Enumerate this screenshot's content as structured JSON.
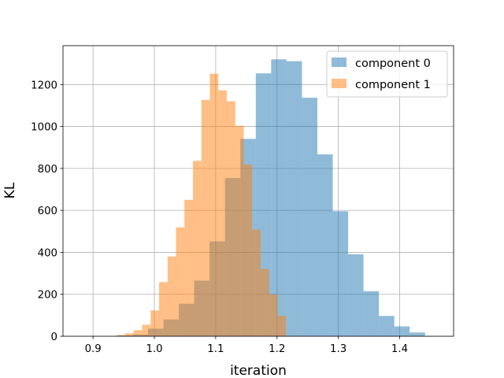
{
  "chart_data": {
    "type": "bar",
    "subtype": "histogram",
    "xlabel": "iteration",
    "ylabel": "KL",
    "xlim": [
      0.851,
      1.488
    ],
    "ylim": [
      0,
      1385
    ],
    "xticks": [
      0.9,
      1.0,
      1.1,
      1.2,
      1.3,
      1.4
    ],
    "xtick_labels": [
      "0.9",
      "1.0",
      "1.1",
      "1.2",
      "1.3",
      "1.4"
    ],
    "yticks": [
      0,
      200,
      400,
      600,
      800,
      1000,
      1200
    ],
    "ytick_labels": [
      "0",
      "200",
      "400",
      "600",
      "800",
      "1000",
      "1200"
    ],
    "grid": true,
    "legend_position": "top-right",
    "series": [
      {
        "name": "component 0",
        "color": "#1f77b4",
        "alpha": 0.5,
        "bin_edges": [
          0.9395,
          0.9646,
          0.9897,
          1.0148,
          1.0399,
          1.065,
          1.0901,
          1.1152,
          1.1403,
          1.1654,
          1.1905,
          1.2156,
          1.2407,
          1.2658,
          1.2909,
          1.316,
          1.3411,
          1.3662,
          1.3913,
          1.4164,
          1.4415
        ],
        "values": [
          4,
          8,
          36,
          80,
          155,
          265,
          452,
          754,
          941,
          1253,
          1320,
          1311,
          1137,
          867,
          596,
          391,
          215,
          97,
          47,
          18
        ],
        "edge_values": [
          0,
          3
        ]
      },
      {
        "name": "component 1",
        "color": "#ff7f0e",
        "alpha": 0.5,
        "bin_edges": [
          0.9387,
          0.9525,
          0.9663,
          0.9801,
          0.9939,
          1.0077,
          1.0215,
          1.0353,
          1.0491,
          1.0629,
          1.0767,
          1.0905,
          1.1043,
          1.1181,
          1.1319,
          1.1457,
          1.1595,
          1.1733,
          1.1871,
          1.2009,
          1.2147
        ],
        "values": [
          6,
          14,
          29,
          55,
          123,
          258,
          380,
          519,
          650,
          836,
          1126,
          1251,
          1172,
          1120,
          1003,
          819,
          509,
          321,
          199,
          98
        ],
        "edge_values": [
          2,
          4
        ]
      }
    ]
  }
}
